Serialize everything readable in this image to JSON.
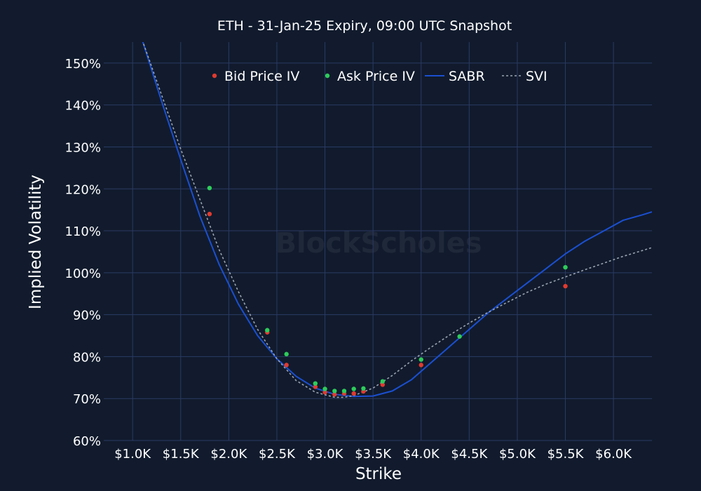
{
  "chart_data": {
    "type": "scatter",
    "title": "ETH - 31-Jan-25 Expiry, 09:00 UTC Snapshot",
    "xlabel": "Strike",
    "ylabel": "Implied Volatility",
    "xlim": [
      700,
      6400
    ],
    "ylim": [
      60,
      155
    ],
    "grid": true,
    "legend_position": "top",
    "watermark": "BlockScholes",
    "x_ticks": [
      1000,
      1500,
      2000,
      2500,
      3000,
      3500,
      4000,
      4500,
      5000,
      5500,
      6000
    ],
    "x_tick_labels": [
      "$1.0K",
      "$1.5K",
      "$2.0K",
      "$2.5K",
      "$3.0K",
      "$3.5K",
      "$4.0K",
      "$4.5K",
      "$5.0K",
      "$5.5K",
      "$6.0K"
    ],
    "y_ticks": [
      60,
      70,
      80,
      90,
      100,
      110,
      120,
      130,
      140,
      150
    ],
    "y_tick_labels": [
      "60%",
      "70%",
      "80%",
      "90%",
      "100%",
      "110%",
      "120%",
      "130%",
      "140%",
      "150%"
    ],
    "series": [
      {
        "name": "Bid Price IV",
        "kind": "points",
        "color": "#e03a2f",
        "x": [
          1800,
          2400,
          2600,
          2900,
          3000,
          3100,
          3200,
          3300,
          3400,
          3600,
          4000,
          5500
        ],
        "y": [
          114.0,
          85.8,
          78.0,
          72.8,
          71.5,
          71.0,
          71.2,
          71.2,
          71.7,
          73.3,
          78.0,
          96.8
        ]
      },
      {
        "name": "Ask Price IV",
        "kind": "points",
        "color": "#2ecc5a",
        "x": [
          1800,
          2400,
          2600,
          2900,
          3000,
          3100,
          3200,
          3300,
          3400,
          3600,
          4000,
          4400,
          5500
        ],
        "y": [
          120.2,
          86.3,
          80.6,
          73.6,
          72.3,
          71.8,
          71.8,
          72.3,
          72.4,
          74.1,
          79.3,
          84.8,
          101.3
        ]
      },
      {
        "name": "SABR",
        "kind": "line",
        "color": "#1b4fd1",
        "x": [
          1100,
          1300,
          1500,
          1700,
          1900,
          2100,
          2300,
          2500,
          2700,
          2900,
          3100,
          3300,
          3500,
          3700,
          3900,
          4100,
          4300,
          4500,
          4700,
          4900,
          5100,
          5300,
          5500,
          5700,
          5900,
          6100,
          6300,
          6400
        ],
        "y": [
          155.5,
          141.0,
          127.0,
          113.5,
          102.0,
          92.5,
          85.0,
          79.5,
          75.3,
          72.5,
          71.0,
          70.5,
          70.6,
          71.8,
          74.5,
          78.5,
          82.5,
          86.5,
          90.5,
          94.0,
          97.5,
          101.0,
          104.5,
          107.5,
          110.0,
          112.5,
          113.8,
          114.5
        ]
      },
      {
        "name": "SVI",
        "kind": "dashed",
        "color": "#9aa3b0",
        "x": [
          1100,
          1300,
          1500,
          1700,
          1900,
          2100,
          2300,
          2500,
          2700,
          2900,
          3100,
          3200,
          3300,
          3500,
          3700,
          3900,
          4100,
          4300,
          4500,
          4700,
          4900,
          5100,
          5300,
          5500,
          5700,
          5900,
          6100,
          6300,
          6400
        ],
        "y": [
          155.5,
          142.5,
          129.5,
          117.5,
          105.5,
          95.5,
          86.5,
          79.5,
          74.3,
          71.5,
          70.3,
          70.3,
          70.7,
          72.5,
          75.5,
          79.0,
          82.2,
          85.2,
          88.0,
          90.6,
          93.0,
          95.3,
          97.3,
          99.0,
          100.7,
          102.3,
          103.9,
          105.3,
          106.0
        ]
      }
    ]
  }
}
